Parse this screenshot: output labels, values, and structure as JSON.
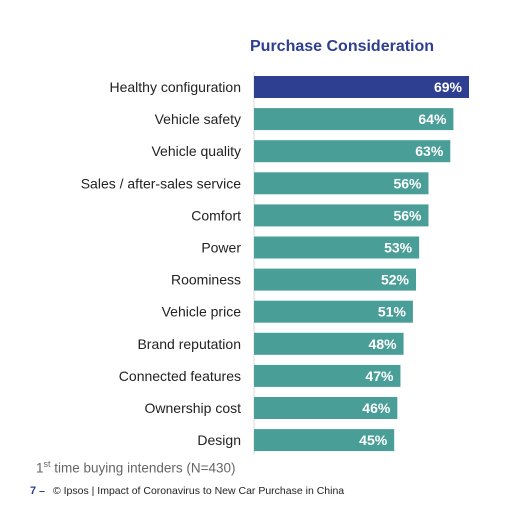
{
  "chart_data": {
    "type": "bar",
    "orientation": "horizontal",
    "title": "Purchase Consideration",
    "categories": [
      "Healthy configuration",
      "Vehicle safety",
      "Vehicle quality",
      "Sales / after-sales service",
      "Comfort",
      "Power",
      "Roominess",
      "Vehicle price",
      "Brand reputation",
      "Connected features",
      "Ownership cost",
      "Design"
    ],
    "values": [
      69,
      64,
      63,
      56,
      56,
      53,
      52,
      51,
      48,
      47,
      46,
      45
    ],
    "value_labels": [
      "69%",
      "64%",
      "63%",
      "56%",
      "56%",
      "53%",
      "52%",
      "51%",
      "48%",
      "47%",
      "46%",
      "45%"
    ],
    "unit": "%",
    "xlim": [
      0,
      69
    ],
    "grid": false,
    "highlight_color": "#2e3f91",
    "bar_color": "#4a9e98"
  },
  "note": {
    "prefix": "1",
    "superscript": "st",
    "text": " time buying intenders (N=430)"
  },
  "footer": {
    "page_number": "7",
    "dash": "–",
    "text": "© Ipsos | Impact of Coronavirus to New Car Purchase in China"
  }
}
